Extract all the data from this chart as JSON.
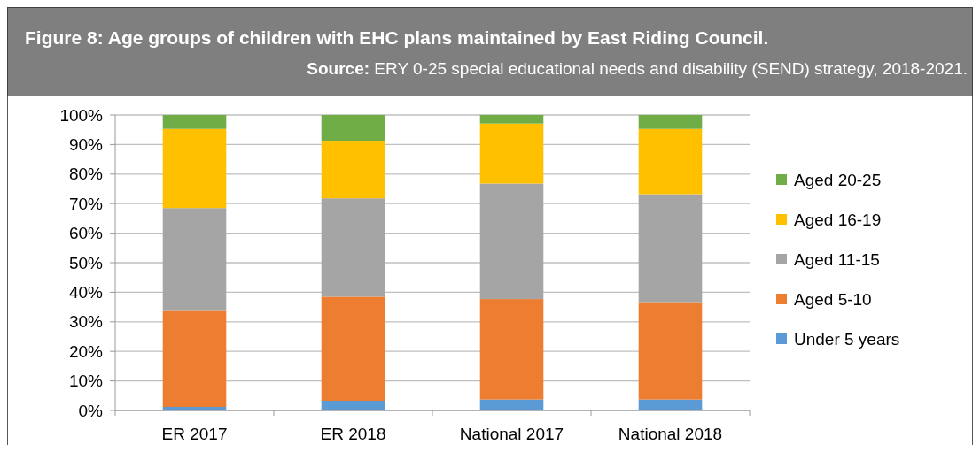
{
  "chart_data": {
    "type": "bar",
    "title": "Figure 8: Age groups of children with EHC plans maintained by East Riding Council.",
    "subtitle": "Source: ERY 0-25 special educational needs and disability (SEND) strategy, 2018-2021.",
    "categories": [
      "ER 2017",
      "ER 2018",
      "National 2017",
      "National 2018"
    ],
    "stacked": true,
    "series": [
      {
        "name": "Under 5 years",
        "color": "#5b9bd5",
        "values": [
          1.2,
          3.3,
          3.7,
          3.7
        ]
      },
      {
        "name": "Aged 5-10",
        "color": "#ed7d31",
        "values": [
          32.5,
          35.2,
          34.0,
          33.0
        ]
      },
      {
        "name": "Aged 11-15",
        "color": "#a5a5a5",
        "values": [
          34.8,
          33.3,
          39.1,
          36.5
        ]
      },
      {
        "name": "Aged 16-19",
        "color": "#ffc000",
        "values": [
          26.8,
          19.5,
          20.3,
          22.1
        ]
      },
      {
        "name": "Aged 20-25",
        "color": "#70ad47",
        "values": [
          4.7,
          8.7,
          2.9,
          4.7
        ]
      }
    ],
    "ylim": [
      0,
      100
    ],
    "yticks": [
      {
        "value": 0,
        "label": "0%"
      },
      {
        "value": 10,
        "label": "10%"
      },
      {
        "value": 20,
        "label": "20%"
      },
      {
        "value": 30,
        "label": "30%"
      },
      {
        "value": 40,
        "label": "40%"
      },
      {
        "value": 50,
        "label": "50%"
      },
      {
        "value": 60,
        "label": "60%"
      },
      {
        "value": 70,
        "label": "70%"
      },
      {
        "value": 80,
        "label": "80%"
      },
      {
        "value": 90,
        "label": "90%"
      },
      {
        "value": 100,
        "label": "100%"
      }
    ],
    "grid": "y",
    "legend": "right"
  }
}
